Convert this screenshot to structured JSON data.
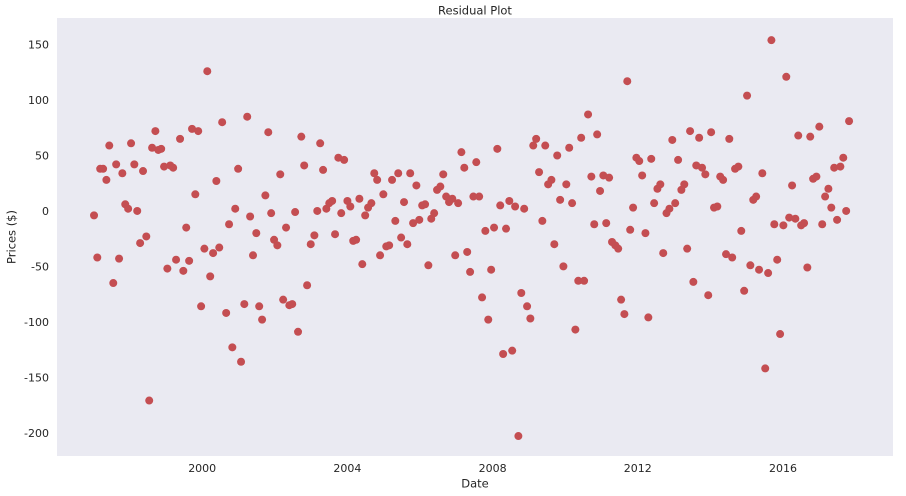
{
  "chart_data": {
    "type": "scatter",
    "title": "Residual Plot",
    "xlabel": "Date",
    "ylabel": "Prices ($)",
    "color": "#c44e52",
    "grid": false,
    "xlim": [
      1996.0,
      2019.03
    ],
    "ylim": [
      -220,
      175
    ],
    "xticks": [
      2000,
      2004,
      2008,
      2012,
      2016
    ],
    "yticks": [
      -200,
      -150,
      -100,
      -50,
      0,
      50,
      100,
      150
    ],
    "x": [
      1997.02,
      1997.11,
      1997.19,
      1997.27,
      1997.36,
      1997.44,
      1997.55,
      1997.63,
      1997.71,
      1997.8,
      1997.88,
      1997.96,
      1998.04,
      1998.13,
      1998.21,
      1998.29,
      1998.37,
      1998.46,
      1998.54,
      1998.62,
      1998.71,
      1998.79,
      1998.87,
      1998.95,
      1999.04,
      1999.12,
      1999.2,
      1999.28,
      1999.39,
      1999.48,
      1999.56,
      1999.64,
      1999.72,
      1999.81,
      1999.89,
      1999.97,
      2000.06,
      2000.14,
      2000.22,
      2000.3,
      2000.39,
      2000.47,
      2000.55,
      2000.66,
      2000.74,
      2000.83,
      2000.91,
      2000.99,
      2001.07,
      2001.16,
      2001.24,
      2001.32,
      2001.4,
      2001.49,
      2001.57,
      2001.65,
      2001.74,
      2001.82,
      2001.9,
      2001.98,
      2002.07,
      2002.15,
      2002.23,
      2002.31,
      2002.4,
      2002.48,
      2002.56,
      2002.64,
      2002.73,
      2002.81,
      2002.89,
      2002.99,
      2003.09,
      2003.17,
      2003.25,
      2003.33,
      2003.42,
      2003.5,
      2003.58,
      2003.66,
      2003.75,
      2003.83,
      2003.91,
      2004.0,
      2004.08,
      2004.16,
      2004.24,
      2004.33,
      2004.41,
      2004.49,
      2004.57,
      2004.66,
      2004.74,
      2004.82,
      2004.9,
      2004.99,
      2005.07,
      2005.15,
      2005.23,
      2005.32,
      2005.4,
      2005.48,
      2005.56,
      2005.65,
      2005.73,
      2005.81,
      2005.9,
      2005.98,
      2006.06,
      2006.14,
      2006.23,
      2006.31,
      2006.39,
      2006.47,
      2006.56,
      2006.64,
      2006.72,
      2006.8,
      2006.89,
      2006.97,
      2007.05,
      2007.14,
      2007.22,
      2007.3,
      2007.38,
      2007.47,
      2007.55,
      2007.63,
      2007.71,
      2007.8,
      2007.88,
      2007.96,
      2008.04,
      2008.13,
      2008.21,
      2008.29,
      2008.37,
      2008.46,
      2008.54,
      2008.62,
      2008.71,
      2008.79,
      2008.87,
      2008.95,
      2009.04,
      2009.12,
      2009.2,
      2009.28,
      2009.37,
      2009.45,
      2009.53,
      2009.62,
      2009.7,
      2009.78,
      2009.86,
      2009.95,
      2010.03,
      2010.11,
      2010.19,
      2010.28,
      2010.36,
      2010.44,
      2010.52,
      2010.63,
      2010.72,
      2010.8,
      2010.88,
      2010.96,
      2011.05,
      2011.13,
      2011.21,
      2011.29,
      2011.38,
      2011.46,
      2011.54,
      2011.63,
      2011.71,
      2011.79,
      2011.87,
      2011.96,
      2012.04,
      2012.12,
      2012.21,
      2012.29,
      2012.37,
      2012.45,
      2012.54,
      2012.62,
      2012.7,
      2012.79,
      2012.87,
      2012.95,
      2013.03,
      2013.11,
      2013.2,
      2013.28,
      2013.36,
      2013.44,
      2013.53,
      2013.61,
      2013.69,
      2013.77,
      2013.86,
      2013.94,
      2014.02,
      2014.1,
      2014.19,
      2014.27,
      2014.35,
      2014.43,
      2014.52,
      2014.6,
      2014.68,
      2014.77,
      2014.85,
      2014.93,
      2015.01,
      2015.1,
      2015.18,
      2015.26,
      2015.34,
      2015.43,
      2015.51,
      2015.59,
      2015.68,
      2015.76,
      2015.84,
      2015.92,
      2016.01,
      2016.09,
      2016.17,
      2016.25,
      2016.34,
      2016.42,
      2016.5,
      2016.58,
      2016.67,
      2016.75,
      2016.83,
      2016.92,
      2017.0,
      2017.08,
      2017.16,
      2017.25,
      2017.33,
      2017.41,
      2017.49,
      2017.58,
      2017.66,
      2017.74,
      2017.82
    ],
    "values": [
      -3,
      -41,
      39,
      39,
      29,
      60,
      -64,
      43,
      -42,
      35,
      7,
      3,
      62,
      43,
      1,
      -28,
      37,
      -22,
      -170,
      58,
      73,
      56,
      57,
      41,
      -51,
      42,
      40,
      -43,
      66,
      -53,
      -14,
      -44,
      75,
      16,
      73,
      -85,
      -33,
      127,
      -58,
      -37,
      28,
      -32,
      81,
      -91,
      -11,
      -122,
      3,
      39,
      -135,
      -83,
      86,
      -4,
      -39,
      -19,
      -85,
      -97,
      15,
      72,
      -1,
      -25,
      -30,
      34,
      -79,
      -14,
      -84,
      -83,
      0,
      -108,
      68,
      42,
      -66,
      -29,
      -21,
      1,
      62,
      38,
      3,
      8,
      10,
      -20,
      49,
      -1,
      47,
      10,
      5,
      -26,
      -25,
      12,
      -47,
      -3,
      4,
      8,
      35,
      29,
      -39,
      16,
      -31,
      -30,
      29,
      -8,
      35,
      -23,
      9,
      -29,
      35,
      -10,
      24,
      -7,
      6,
      7,
      -48,
      -6,
      -1,
      20,
      23,
      34,
      14,
      9,
      12,
      -39,
      8,
      54,
      40,
      -36,
      -54,
      14,
      45,
      14,
      -77,
      -17,
      -97,
      -52,
      -14,
      57,
      6,
      -128,
      -15,
      10,
      -125,
      5,
      -202,
      -73,
      3,
      -85,
      -96,
      60,
      66,
      36,
      -8,
      60,
      25,
      29,
      -29,
      51,
      11,
      -49,
      25,
      58,
      8,
      -106,
      -62,
      67,
      -62,
      88,
      32,
      -11,
      70,
      19,
      33,
      -10,
      31,
      -27,
      -30,
      -33,
      -79,
      -92,
      118,
      -16,
      4,
      49,
      46,
      33,
      -19,
      -95,
      48,
      8,
      21,
      25,
      -37,
      -1,
      3,
      65,
      8,
      47,
      20,
      25,
      -33,
      73,
      -63,
      42,
      67,
      40,
      34,
      -75,
      72,
      4,
      5,
      32,
      29,
      -38,
      66,
      -41,
      39,
      41,
      -17,
      -71,
      105,
      -48,
      11,
      14,
      -52,
      35,
      -141,
      -55,
      155,
      -11,
      -43,
      -110,
      -12,
      122,
      -5,
      24,
      -6,
      69,
      -12,
      -10,
      -50,
      68,
      30,
      32,
      77,
      -11,
      14,
      21,
      4,
      40,
      -7,
      41,
      49,
      1,
      82
    ]
  }
}
